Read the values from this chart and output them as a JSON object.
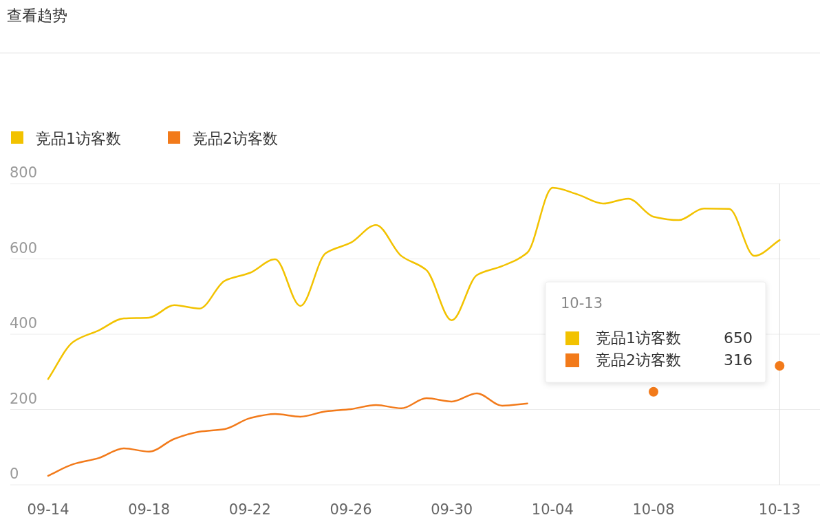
{
  "chart_data": {
    "type": "line",
    "title": "查看趋势",
    "categories": [
      "09-14",
      null,
      null,
      null,
      "09-18",
      null,
      null,
      null,
      "09-22",
      null,
      null,
      null,
      "09-26",
      null,
      null,
      null,
      "09-30",
      null,
      null,
      null,
      "10-04",
      null,
      null,
      null,
      "10-08",
      null,
      null,
      null,
      null,
      "10-13"
    ],
    "series": [
      {
        "name": "竞品1访客数",
        "color": "#f2c200",
        "values": [
          281,
          380,
          410,
          442,
          444,
          477,
          468,
          542,
          563,
          599,
          475,
          615,
          643,
          690,
          608,
          570,
          437,
          557,
          581,
          617,
          789,
          771,
          747,
          760,
          712,
          703,
          734,
          733,
          608,
          650
        ]
      },
      {
        "name": "竞品2访客数",
        "color": "#f27a1a",
        "values": [
          24,
          55,
          71,
          97,
          88,
          122,
          141,
          148,
          177,
          188,
          181,
          195,
          201,
          212,
          203,
          230,
          221,
          243,
          210,
          216,
          null,
          null,
          null,
          null,
          247,
          null,
          null,
          null,
          null,
          316
        ]
      }
    ],
    "ylim": [
      0,
      800
    ],
    "yticks": [
      0,
      200,
      400,
      600,
      800
    ],
    "grid": "y",
    "legend": "top left",
    "ref_lines": [
      {
        "axis": "x",
        "value": "10-13",
        "color": "#dddddd"
      }
    ],
    "annotations": [
      "10-13",
      "竞品1访客数",
      "650",
      "竞品2访客数",
      "316"
    ]
  }
}
